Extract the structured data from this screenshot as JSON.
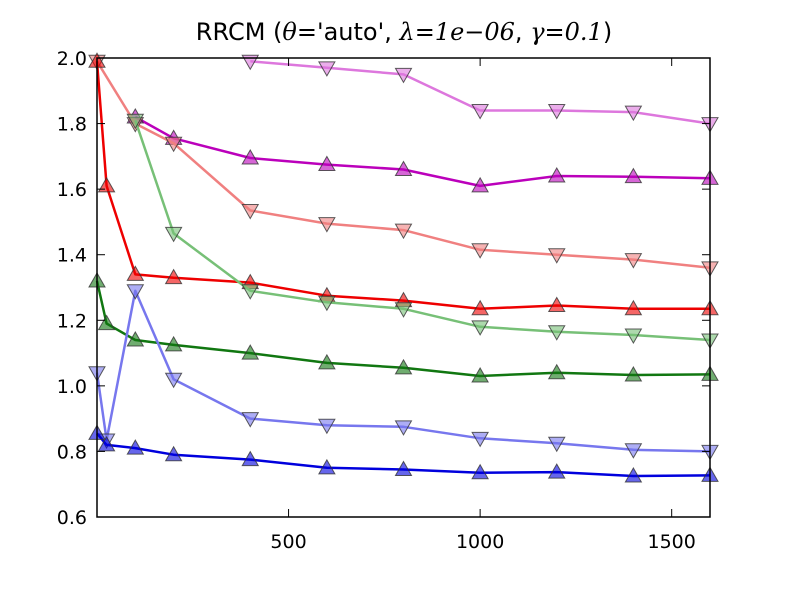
{
  "chart_data": {
    "type": "line",
    "title_parts": {
      "name": "RRCM",
      "open": " (",
      "theta": "θ",
      "eq1": "=",
      "theta_val": "'auto'",
      "c1": ", ",
      "lambda": "λ",
      "eq2": "=",
      "lambda_val": "1e−06",
      "c2": ", ",
      "gamma": "γ",
      "eq3": "=",
      "gamma_val": "0.1",
      "close": ")"
    },
    "xlabel": "",
    "ylabel": "",
    "xlim": [
      0,
      1600
    ],
    "ylim": [
      0.6,
      2.0
    ],
    "xticks": [
      500,
      1000,
      1500
    ],
    "xtick_labels": [
      "500",
      "1000",
      "1500"
    ],
    "yticks": [
      0.6,
      0.8,
      1.0,
      1.2,
      1.4,
      1.6,
      1.8,
      2.0
    ],
    "ytick_labels": [
      "0.6",
      "0.8",
      "1.0",
      "1.2",
      "1.4",
      "1.6",
      "1.8",
      "2.0"
    ],
    "grid": false,
    "series": [
      {
        "color": "#dd77dd",
        "line_alpha": 1,
        "marker": "triangle-down",
        "x": [
          400,
          600,
          800,
          1000,
          1200,
          1400,
          1600
        ],
        "y": [
          1.99,
          1.97,
          1.95,
          1.84,
          1.84,
          1.835,
          1.8
        ]
      },
      {
        "color": "#bb00bb",
        "line_alpha": 1,
        "marker": "triangle-up",
        "x": [
          100,
          200,
          400,
          600,
          800,
          1000,
          1200,
          1400,
          1600
        ],
        "y": [
          1.82,
          1.755,
          1.695,
          1.675,
          1.66,
          1.61,
          1.64,
          1.638,
          1.633
        ]
      },
      {
        "color": "#f08080",
        "line_alpha": 1,
        "marker": "triangle-down",
        "x": [
          0,
          100,
          200,
          400,
          600,
          800,
          1000,
          1200,
          1400,
          1600
        ],
        "y": [
          1.99,
          1.8,
          1.74,
          1.535,
          1.495,
          1.475,
          1.415,
          1.4,
          1.385,
          1.36
        ]
      },
      {
        "color": "#ee0000",
        "line_alpha": 1,
        "marker": "triangle-up",
        "x": [
          0,
          25,
          100,
          200,
          400,
          600,
          800,
          1000,
          1200,
          1400,
          1600
        ],
        "y": [
          1.99,
          1.61,
          1.34,
          1.33,
          1.315,
          1.275,
          1.26,
          1.235,
          1.245,
          1.235,
          1.235
        ]
      },
      {
        "color": "#77c077",
        "line_alpha": 1,
        "marker": "triangle-down",
        "x": [
          100,
          200,
          400,
          600,
          800,
          1000,
          1200,
          1400,
          1600
        ],
        "y": [
          1.81,
          1.465,
          1.29,
          1.255,
          1.235,
          1.18,
          1.165,
          1.155,
          1.14
        ]
      },
      {
        "color": "#117711",
        "line_alpha": 1,
        "marker": "triangle-up",
        "x": [
          0,
          25,
          100,
          200,
          400,
          600,
          800,
          1000,
          1200,
          1400,
          1600
        ],
        "y": [
          1.32,
          1.19,
          1.14,
          1.125,
          1.1,
          1.07,
          1.055,
          1.03,
          1.04,
          1.033,
          1.035
        ]
      },
      {
        "color": "#7777ee",
        "line_alpha": 1,
        "marker": "triangle-down",
        "x": [
          0,
          25,
          100,
          200,
          400,
          600,
          800,
          1000,
          1200,
          1400,
          1600
        ],
        "y": [
          1.04,
          0.835,
          1.29,
          1.02,
          0.9,
          0.88,
          0.875,
          0.84,
          0.825,
          0.805,
          0.8
        ]
      },
      {
        "color": "#0000dd",
        "line_alpha": 1,
        "marker": "triangle-up",
        "x": [
          0,
          25,
          100,
          200,
          400,
          600,
          800,
          1000,
          1200,
          1400,
          1600
        ],
        "y": [
          0.855,
          0.82,
          0.81,
          0.79,
          0.775,
          0.75,
          0.745,
          0.735,
          0.737,
          0.725,
          0.727
        ]
      }
    ]
  }
}
